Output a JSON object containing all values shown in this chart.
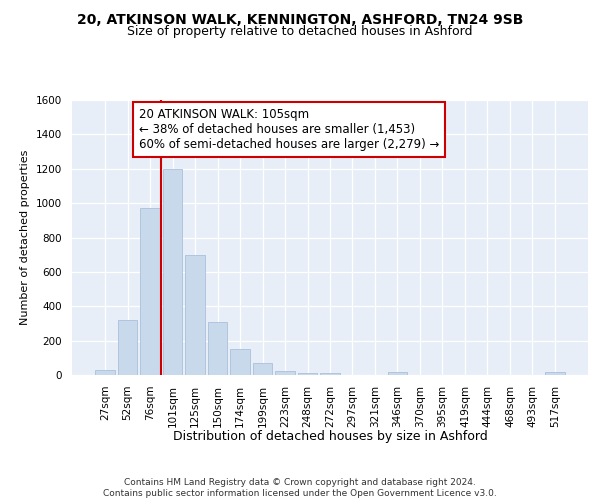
{
  "title1": "20, ATKINSON WALK, KENNINGTON, ASHFORD, TN24 9SB",
  "title2": "Size of property relative to detached houses in Ashford",
  "xlabel": "Distribution of detached houses by size in Ashford",
  "ylabel": "Number of detached properties",
  "categories": [
    "27sqm",
    "52sqm",
    "76sqm",
    "101sqm",
    "125sqm",
    "150sqm",
    "174sqm",
    "199sqm",
    "223sqm",
    "248sqm",
    "272sqm",
    "297sqm",
    "321sqm",
    "346sqm",
    "370sqm",
    "395sqm",
    "419sqm",
    "444sqm",
    "468sqm",
    "493sqm",
    "517sqm"
  ],
  "values": [
    30,
    320,
    970,
    1200,
    700,
    310,
    150,
    70,
    25,
    12,
    12,
    0,
    0,
    20,
    0,
    0,
    0,
    0,
    0,
    0,
    18
  ],
  "bar_color": "#c8d9ec",
  "bar_edge_color": "#aac0db",
  "vline_color": "#cc0000",
  "vline_x": 3,
  "annotation_line1": "20 ATKINSON WALK: 105sqm",
  "annotation_line2": "← 38% of detached houses are smaller (1,453)",
  "annotation_line3": "60% of semi-detached houses are larger (2,279) →",
  "annotation_box_fc": "#ffffff",
  "annotation_box_ec": "#cc0000",
  "ylim": [
    0,
    1600
  ],
  "yticks": [
    0,
    200,
    400,
    600,
    800,
    1000,
    1200,
    1400,
    1600
  ],
  "bg_color": "#e8eef8",
  "grid_color": "#ffffff",
  "footer": "Contains HM Land Registry data © Crown copyright and database right 2024.\nContains public sector information licensed under the Open Government Licence v3.0.",
  "title1_fontsize": 10,
  "title2_fontsize": 9,
  "xlabel_fontsize": 9,
  "ylabel_fontsize": 8,
  "tick_fontsize": 7.5,
  "annotation_fontsize": 8.5,
  "footer_fontsize": 6.5
}
